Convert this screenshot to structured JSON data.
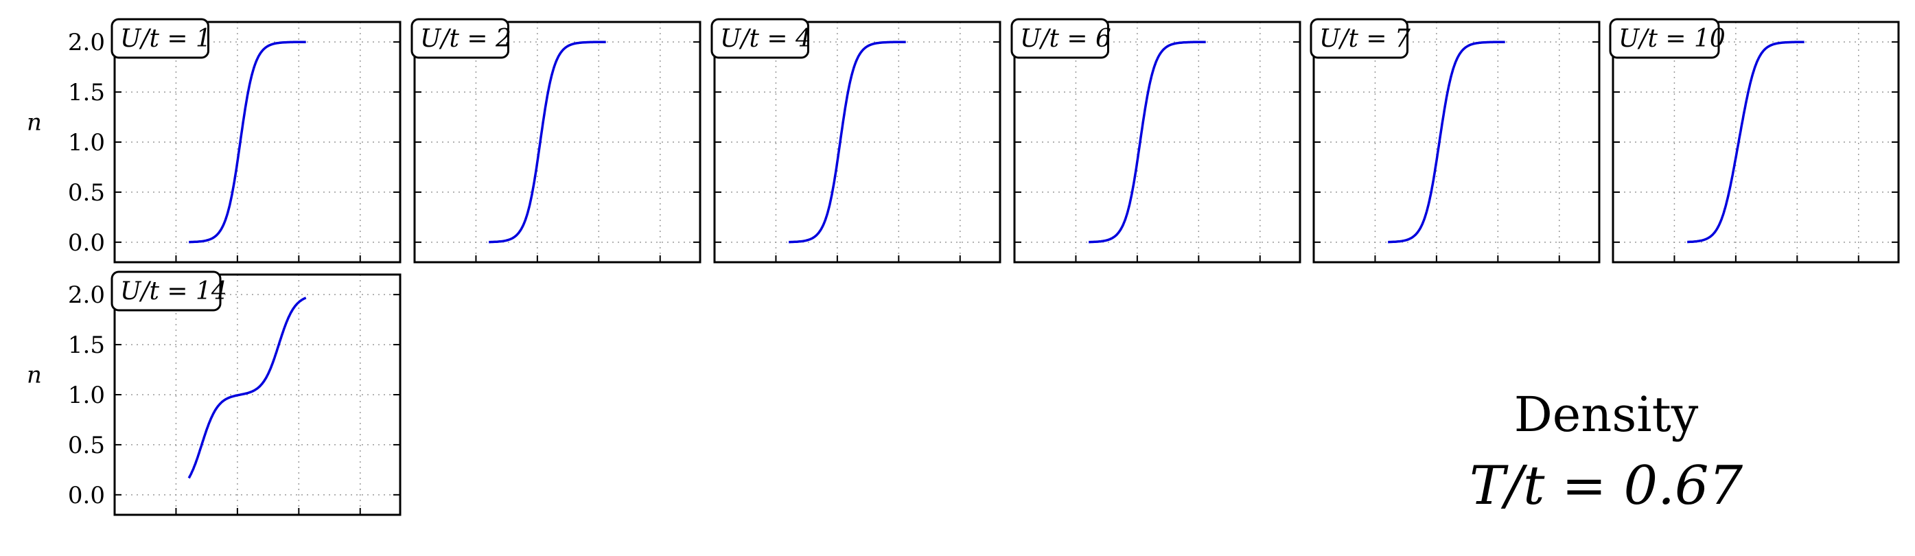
{
  "chart_data": {
    "type": "line",
    "title": [
      "Density",
      "T/t = 0.67"
    ],
    "ylabel": "n",
    "xlabel": "",
    "ylim": [
      -0.2,
      2.2
    ],
    "yticks": [
      "0.0",
      "0.5",
      "1.0",
      "1.5",
      "2.0"
    ],
    "grid": true,
    "line_color": "#0000dd",
    "panels": [
      {
        "label": "U/t = 1",
        "U": 1
      },
      {
        "label": "U/t = 2",
        "U": 2
      },
      {
        "label": "U/t = 4",
        "U": 4
      },
      {
        "label": "U/t = 6",
        "U": 6
      },
      {
        "label": "U/t = 7",
        "U": 7
      },
      {
        "label": "U/t = 10",
        "U": 10
      },
      {
        "label": "U/t = 14",
        "U": 14
      }
    ]
  }
}
